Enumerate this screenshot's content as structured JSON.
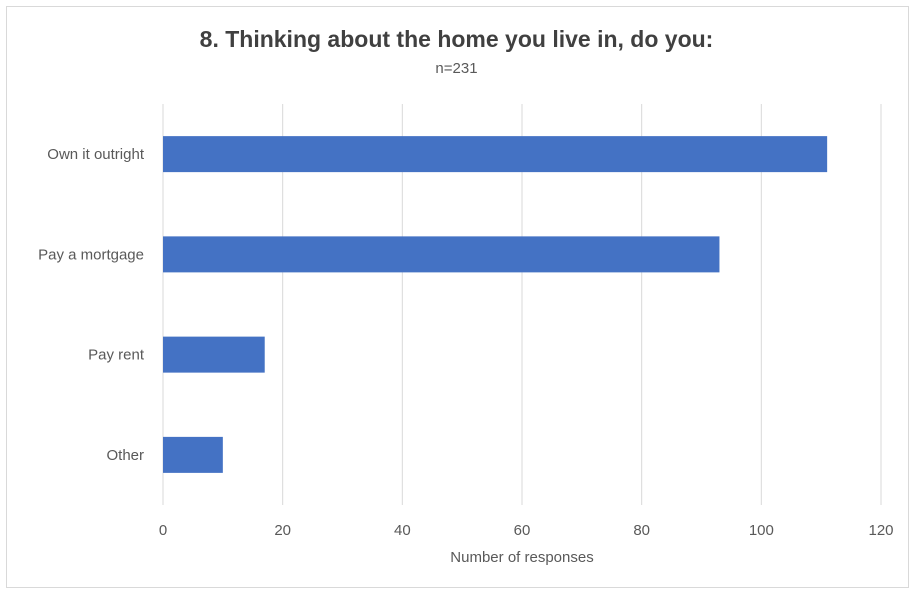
{
  "chart_data": {
    "type": "bar",
    "orientation": "horizontal",
    "title": "8. Thinking about the home you live in, do you:",
    "subtitle": "n=231",
    "categories": [
      "Own it outright",
      "Pay a mortgage",
      "Pay rent",
      "Other"
    ],
    "values": [
      111,
      93,
      17,
      10
    ],
    "xlabel": "Number of responses",
    "ylabel": "",
    "xlim": [
      0,
      120
    ],
    "xticks": [
      0,
      20,
      40,
      60,
      80,
      100,
      120
    ],
    "xtick_labels": [
      "0",
      "20",
      "40",
      "60",
      "80",
      "100",
      "120"
    ],
    "grid": "vertical",
    "legend": "none",
    "bar_color": "#4472C4",
    "grid_color": "#d9d9d9"
  }
}
